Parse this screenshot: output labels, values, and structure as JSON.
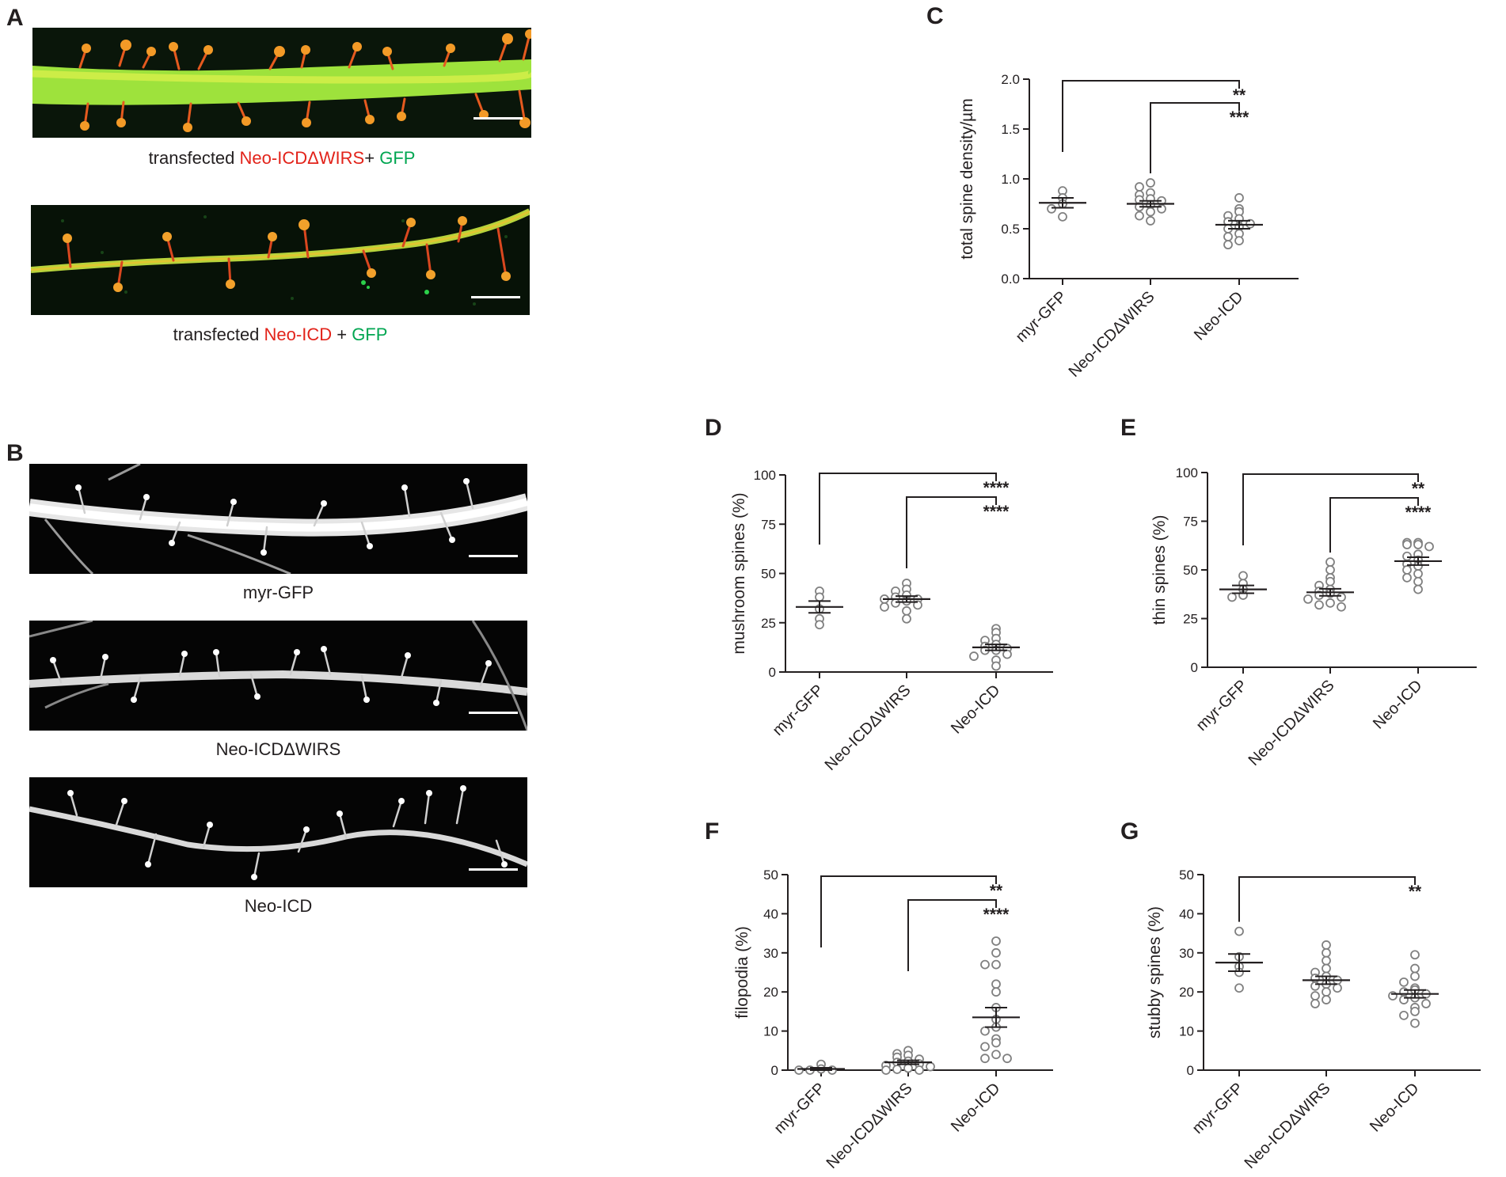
{
  "panels": {
    "A": {
      "letter": "A",
      "images": [
        {
          "caption_parts": [
            {
              "text": "transfected ",
              "color": "black"
            },
            {
              "text": "Neo-ICDΔWIRS",
              "color": "red"
            },
            {
              "text": "+ ",
              "color": "black"
            },
            {
              "text": "GFP",
              "color": "green"
            }
          ]
        },
        {
          "caption_parts": [
            {
              "text": "transfected ",
              "color": "black"
            },
            {
              "text": "Neo-ICD",
              "color": "red"
            },
            {
              "text": " + ",
              "color": "black"
            },
            {
              "text": "GFP",
              "color": "green"
            }
          ]
        }
      ]
    },
    "B": {
      "letter": "B",
      "captions": [
        "myr-GFP",
        "Neo-ICDΔWIRS",
        "Neo-ICD"
      ]
    }
  },
  "colors": {
    "red": "#e2231a",
    "green": "#00a651",
    "axis": "#231f20",
    "marker": "#808080"
  },
  "chart_data": [
    {
      "id": "C",
      "letter": "C",
      "type": "scatter",
      "ylabel": "total spine density/µm",
      "categories": [
        "myr-GFP",
        "Neo-ICDΔWIRS",
        "Neo-ICD"
      ],
      "ylim": [
        0,
        2.0
      ],
      "yticks": [
        "0.0",
        "0.5",
        "1.0",
        "1.5",
        "2.0"
      ],
      "tick_values": [
        0,
        0.5,
        1.0,
        1.5,
        2.0
      ],
      "mean": [
        0.76,
        0.75,
        0.54
      ],
      "sem": [
        0.05,
        0.03,
        0.04
      ],
      "points": [
        [
          0.88,
          0.81,
          0.75,
          0.7,
          0.62
        ],
        [
          0.96,
          0.92,
          0.86,
          0.84,
          0.8,
          0.79,
          0.78,
          0.74,
          0.72,
          0.7,
          0.67,
          0.63,
          0.58
        ],
        [
          0.81,
          0.7,
          0.67,
          0.63,
          0.6,
          0.57,
          0.55,
          0.52,
          0.5,
          0.45,
          0.42,
          0.38,
          0.34
        ]
      ],
      "comparisons": [
        {
          "from": 0,
          "to": 2,
          "label": "**"
        },
        {
          "from": 1,
          "to": 2,
          "label": "***"
        }
      ]
    },
    {
      "id": "D",
      "letter": "D",
      "type": "scatter",
      "ylabel": "mushroom spines (%)",
      "categories": [
        "myr-GFP",
        "Neo-ICDΔWIRS",
        "Neo-ICD"
      ],
      "ylim": [
        0,
        100
      ],
      "yticks": [
        "0",
        "25",
        "50",
        "75",
        "100"
      ],
      "tick_values": [
        0,
        25,
        50,
        75,
        100
      ],
      "mean": [
        33,
        37,
        12.5
      ],
      "sem": [
        3,
        1.5,
        1.5
      ],
      "points": [
        [
          41,
          38,
          32,
          27,
          24
        ],
        [
          45,
          42,
          41,
          39,
          38,
          37,
          37,
          36,
          35,
          34,
          33,
          31,
          27
        ],
        [
          22,
          20,
          17,
          16,
          14,
          13,
          12,
          11,
          11,
          9,
          8,
          6,
          3
        ]
      ],
      "comparisons": [
        {
          "from": 0,
          "to": 2,
          "label": "****"
        },
        {
          "from": 1,
          "to": 2,
          "label": "****"
        }
      ]
    },
    {
      "id": "E",
      "letter": "E",
      "type": "scatter",
      "ylabel": "thin spines (%)",
      "categories": [
        "myr-GFP",
        "Neo-ICDΔWIRS",
        "Neo-ICD"
      ],
      "ylim": [
        0,
        100
      ],
      "yticks": [
        "0",
        "25",
        "50",
        "75",
        "100"
      ],
      "tick_values": [
        0,
        25,
        50,
        75,
        100
      ],
      "mean": [
        40,
        38.5,
        54.5
      ],
      "sem": [
        2,
        1.8,
        2
      ],
      "points": [
        [
          47,
          43,
          40,
          37,
          36
        ],
        [
          54,
          50,
          46,
          44,
          42,
          40,
          39,
          38,
          37,
          36,
          35,
          33,
          32,
          31
        ],
        [
          64,
          64,
          63,
          63,
          62,
          58,
          57,
          55,
          53,
          52,
          50,
          48,
          46,
          44,
          40
        ]
      ],
      "comparisons": [
        {
          "from": 0,
          "to": 2,
          "label": "**"
        },
        {
          "from": 1,
          "to": 2,
          "label": "****"
        }
      ]
    },
    {
      "id": "F",
      "letter": "F",
      "type": "scatter",
      "ylabel": "filopodia (%)",
      "categories": [
        "myr-GFP",
        "Neo-ICDΔWIRS",
        "Neo-ICD"
      ],
      "ylim": [
        0,
        50
      ],
      "yticks": [
        "0",
        "10",
        "20",
        "30",
        "40",
        "50"
      ],
      "tick_values": [
        0,
        10,
        20,
        30,
        40,
        50
      ],
      "mean": [
        0.3,
        2,
        13.5
      ],
      "sem": [
        0.3,
        0.5,
        2.5
      ],
      "points": [
        [
          1.5,
          0.3,
          0,
          0,
          0
        ],
        [
          5,
          4.2,
          3.8,
          3.3,
          2.8,
          2.3,
          2,
          1.6,
          1.2,
          0.9,
          0.5,
          0.2,
          0,
          0
        ],
        [
          33,
          30,
          27,
          27,
          22,
          20,
          16,
          13,
          11,
          10,
          8,
          7,
          6,
          4,
          3,
          3
        ]
      ],
      "comparisons": [
        {
          "from": 0,
          "to": 2,
          "label": "**"
        },
        {
          "from": 1,
          "to": 2,
          "label": "****"
        }
      ]
    },
    {
      "id": "G",
      "letter": "G",
      "type": "scatter",
      "ylabel": "stubby spines (%)",
      "categories": [
        "myr-GFP",
        "Neo-ICDΔWIRS",
        "Neo-ICD"
      ],
      "ylim": [
        0,
        50
      ],
      "yticks": [
        "0",
        "10",
        "20",
        "30",
        "40",
        "50"
      ],
      "tick_values": [
        0,
        10,
        20,
        30,
        40,
        50
      ],
      "mean": [
        27.5,
        23,
        19.5
      ],
      "sem": [
        2.2,
        1,
        1
      ],
      "points": [
        [
          35.5,
          29,
          26.5,
          25,
          21
        ],
        [
          32,
          30,
          28,
          26,
          25,
          24,
          23.5,
          23,
          22,
          21.5,
          21,
          20,
          19,
          18,
          17
        ],
        [
          29.5,
          26,
          24,
          22.5,
          21,
          20.5,
          20,
          19.5,
          19,
          18.5,
          18,
          17,
          16,
          15,
          14,
          12
        ]
      ],
      "comparisons": [
        {
          "from": 0,
          "to": 2,
          "label": "**"
        }
      ]
    }
  ]
}
